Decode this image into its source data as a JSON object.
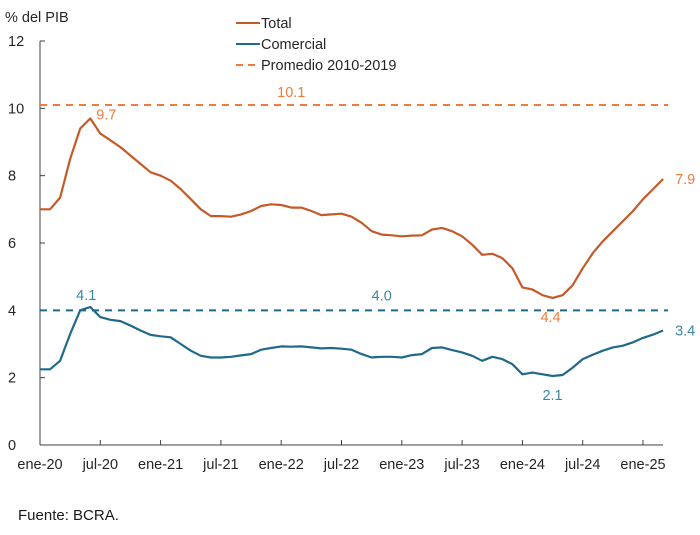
{
  "chart_data": {
    "type": "line",
    "title": "",
    "ylabel": "% del PIB",
    "xlabel": "",
    "ylim": [
      0,
      12
    ],
    "yticks": [
      0,
      2,
      4,
      6,
      8,
      10,
      12
    ],
    "x_start": "ene-20",
    "x_end": "mar-25",
    "x_unit": "month",
    "xtick_labels": [
      "ene-20",
      "jul-20",
      "ene-21",
      "jul-21",
      "ene-22",
      "jul-22",
      "ene-23",
      "jul-23",
      "ene-24",
      "jul-24",
      "ene-25"
    ],
    "xtick_month_index": [
      0,
      6,
      12,
      18,
      24,
      30,
      36,
      42,
      48,
      54,
      60
    ],
    "grid": false,
    "legend_position": "top-center",
    "series": [
      {
        "name": "Total",
        "color": "#C55A28",
        "style": "solid",
        "values": [
          7.0,
          7.0,
          7.35,
          8.5,
          9.4,
          9.7,
          9.25,
          9.05,
          8.85,
          8.6,
          8.35,
          8.1,
          8.0,
          7.85,
          7.6,
          7.3,
          7.0,
          6.8,
          6.8,
          6.78,
          6.85,
          6.95,
          7.1,
          7.15,
          7.13,
          7.05,
          7.05,
          6.95,
          6.83,
          6.85,
          6.87,
          6.78,
          6.6,
          6.35,
          6.25,
          6.23,
          6.2,
          6.22,
          6.23,
          6.4,
          6.45,
          6.35,
          6.2,
          5.95,
          5.65,
          5.68,
          5.55,
          5.25,
          4.68,
          4.62,
          4.45,
          4.37,
          4.45,
          4.75,
          5.25,
          5.7,
          6.05,
          6.35,
          6.65,
          6.95,
          7.3,
          7.6,
          7.9
        ]
      },
      {
        "name": "Comercial",
        "color": "#1F6A8A",
        "style": "solid",
        "values": [
          2.25,
          2.25,
          2.5,
          3.3,
          4.0,
          4.1,
          3.8,
          3.72,
          3.68,
          3.55,
          3.4,
          3.27,
          3.23,
          3.2,
          3.0,
          2.8,
          2.65,
          2.6,
          2.6,
          2.62,
          2.66,
          2.7,
          2.83,
          2.88,
          2.93,
          2.92,
          2.93,
          2.9,
          2.87,
          2.88,
          2.86,
          2.83,
          2.7,
          2.6,
          2.62,
          2.62,
          2.6,
          2.67,
          2.7,
          2.88,
          2.9,
          2.82,
          2.75,
          2.65,
          2.5,
          2.62,
          2.55,
          2.4,
          2.1,
          2.15,
          2.1,
          2.05,
          2.08,
          2.3,
          2.55,
          2.68,
          2.8,
          2.9,
          2.95,
          3.05,
          3.18,
          3.28,
          3.4
        ]
      },
      {
        "name": "Promedio 2010-2019",
        "color": "#F07B3F",
        "style": "dashed",
        "value": 10.1
      },
      {
        "name": "Promedio 2010-2019 Comercial",
        "color": "#1F6A8A",
        "style": "dashed",
        "value": 4.0,
        "in_legend": false
      }
    ],
    "annotations": [
      {
        "text": "10.1",
        "month": 25,
        "value": 10.1,
        "color": "#F07B3F"
      },
      {
        "text": "9.7",
        "month": 5,
        "value": 9.7,
        "color": "#F07B3F"
      },
      {
        "text": "4.4",
        "month": 51,
        "value": 4.37,
        "color": "#F07B3F"
      },
      {
        "text": "7.9",
        "month": 62,
        "value": 7.9,
        "color": "#F07B3F"
      },
      {
        "text": "4.0",
        "month": 34,
        "value": 4.0,
        "color": "#3A86A8"
      },
      {
        "text": "4.1",
        "month": 5,
        "value": 4.1,
        "color": "#3A86A8"
      },
      {
        "text": "2.1",
        "month": 51,
        "value": 2.05,
        "color": "#3A86A8"
      },
      {
        "text": "3.4",
        "month": 62,
        "value": 3.4,
        "color": "#3A86A8"
      }
    ]
  },
  "footer": {
    "source": "Fuente: BCRA."
  }
}
